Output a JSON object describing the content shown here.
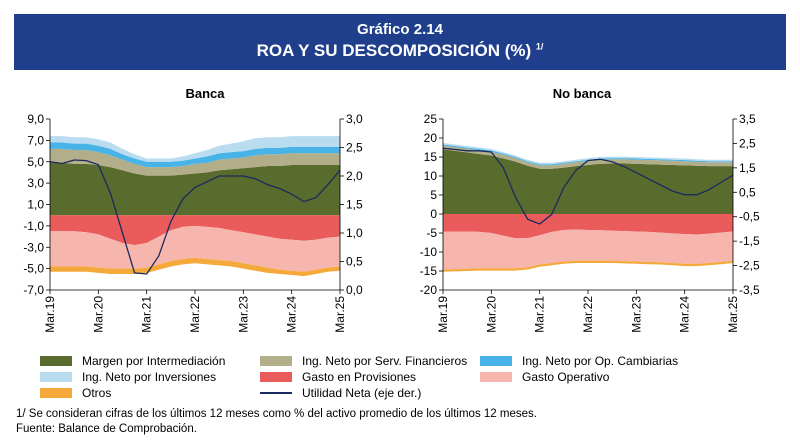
{
  "header": {
    "graph_number": "Gráfico 2.14",
    "title": "ROA Y SU DESCOMPOSICIÓN (%)",
    "title_note": "1/"
  },
  "notes": {
    "note1": "1/ Se consideran cifras de los últimos 12 meses como % del activo promedio de los últimos 12 meses.",
    "source": "Fuente: Balance de Comprobación."
  },
  "legend": [
    {
      "key": "margen",
      "label": "Margen por Intermediación",
      "color": "#5a6b2e"
    },
    {
      "key": "serv",
      "label": "Ing. Neto por Serv. Financieros",
      "color": "#b3ae8a"
    },
    {
      "key": "camb",
      "label": "Ing. Neto por Op. Cambiarias",
      "color": "#47b3e6"
    },
    {
      "key": "inv",
      "label": "Ing. Neto por Inversiones",
      "color": "#b9dcf1"
    },
    {
      "key": "prov",
      "label": "Gasto en Provisiones",
      "color": "#ea5c5c"
    },
    {
      "key": "oper",
      "label": "Gasto Operativo",
      "color": "#f6b6ae"
    },
    {
      "key": "otros",
      "label": "Otros",
      "color": "#f5a93a"
    },
    {
      "key": "util",
      "label": "Utilidad Neta (eje der.)",
      "color": "#1a2a5e"
    }
  ],
  "chart_data": [
    {
      "type": "area",
      "title": "Banca",
      "x": [
        "Mar.19",
        "Jun.19",
        "Sep.19",
        "Dic.19",
        "Mar.20",
        "Jun.20",
        "Sep.20",
        "Dic.20",
        "Mar.21",
        "Jun.21",
        "Sep.21",
        "Dic.21",
        "Mar.22",
        "Jun.22",
        "Sep.22",
        "Dic.22",
        "Mar.23",
        "Jun.23",
        "Sep.23",
        "Dic.23",
        "Mar.24",
        "Jun.24",
        "Sep.24",
        "Dic.24",
        "Mar.25"
      ],
      "xticks": [
        "Mar.19",
        "Mar.20",
        "Mar.21",
        "Mar.22",
        "Mar.23",
        "Mar.24",
        "Mar.25"
      ],
      "ylim": [
        -7,
        9
      ],
      "yticks": [
        "-7,0",
        "-5,0",
        "-3,0",
        "-1,0",
        "1,0",
        "3,0",
        "5,0",
        "7,0",
        "9,0"
      ],
      "y2lim": [
        0,
        3
      ],
      "y2ticks": [
        "0,0",
        "0,5",
        "1,0",
        "1,5",
        "2,0",
        "2,5",
        "3,0"
      ],
      "series": [
        {
          "key": "margen",
          "stack": "pos",
          "values": [
            4.9,
            4.9,
            4.8,
            4.8,
            4.7,
            4.5,
            4.2,
            3.9,
            3.7,
            3.7,
            3.7,
            3.8,
            3.9,
            4.0,
            4.2,
            4.3,
            4.4,
            4.5,
            4.6,
            4.6,
            4.7,
            4.7,
            4.7,
            4.7,
            4.7
          ]
        },
        {
          "key": "serv",
          "stack": "pos",
          "values": [
            1.3,
            1.3,
            1.3,
            1.3,
            1.2,
            1.1,
            1.0,
            0.9,
            0.8,
            0.8,
            0.8,
            0.8,
            0.9,
            0.9,
            1.0,
            1.0,
            1.0,
            1.1,
            1.1,
            1.1,
            1.1,
            1.1,
            1.1,
            1.1,
            1.1
          ]
        },
        {
          "key": "camb",
          "stack": "pos",
          "values": [
            0.6,
            0.6,
            0.6,
            0.6,
            0.6,
            0.6,
            0.5,
            0.5,
            0.5,
            0.5,
            0.5,
            0.5,
            0.5,
            0.6,
            0.6,
            0.6,
            0.6,
            0.6,
            0.6,
            0.6,
            0.6,
            0.6,
            0.6,
            0.6,
            0.6
          ]
        },
        {
          "key": "inv",
          "stack": "pos",
          "values": [
            0.6,
            0.6,
            0.6,
            0.6,
            0.6,
            0.6,
            0.5,
            0.4,
            0.3,
            0.3,
            0.3,
            0.4,
            0.5,
            0.6,
            0.7,
            0.8,
            0.9,
            1.0,
            1.0,
            1.0,
            1.0,
            1.0,
            1.0,
            1.0,
            1.0
          ]
        },
        {
          "key": "prov",
          "stack": "neg",
          "values": [
            -1.5,
            -1.5,
            -1.5,
            -1.6,
            -1.8,
            -2.2,
            -2.6,
            -2.8,
            -2.6,
            -2.0,
            -1.4,
            -1.1,
            -1.0,
            -1.1,
            -1.2,
            -1.4,
            -1.6,
            -1.8,
            -2.0,
            -2.2,
            -2.3,
            -2.4,
            -2.3,
            -2.1,
            -2.0
          ]
        },
        {
          "key": "oper",
          "stack": "neg",
          "values": [
            -3.3,
            -3.3,
            -3.3,
            -3.2,
            -3.1,
            -2.8,
            -2.4,
            -2.2,
            -2.3,
            -2.6,
            -2.9,
            -3.0,
            -3.0,
            -3.0,
            -3.0,
            -2.9,
            -2.9,
            -2.9,
            -2.9,
            -2.9,
            -2.9,
            -2.9,
            -2.8,
            -2.8,
            -2.8
          ]
        },
        {
          "key": "otros",
          "stack": "neg",
          "values": [
            -0.5,
            -0.5,
            -0.5,
            -0.5,
            -0.5,
            -0.5,
            -0.5,
            -0.5,
            -0.5,
            -0.5,
            -0.5,
            -0.5,
            -0.5,
            -0.5,
            -0.5,
            -0.5,
            -0.5,
            -0.5,
            -0.5,
            -0.4,
            -0.4,
            -0.4,
            -0.4,
            -0.4,
            -0.4
          ]
        },
        {
          "key": "util",
          "axis": "right",
          "values": [
            2.25,
            2.22,
            2.28,
            2.27,
            2.2,
            1.7,
            1.0,
            0.3,
            0.28,
            0.6,
            1.2,
            1.6,
            1.8,
            1.9,
            2.0,
            2.0,
            2.0,
            1.95,
            1.85,
            1.78,
            1.68,
            1.55,
            1.62,
            1.85,
            2.1
          ]
        }
      ]
    },
    {
      "type": "area",
      "title": "No banca",
      "x": [
        "Mar.19",
        "Jun.19",
        "Sep.19",
        "Dic.19",
        "Mar.20",
        "Jun.20",
        "Sep.20",
        "Dic.20",
        "Mar.21",
        "Jun.21",
        "Sep.21",
        "Dic.21",
        "Mar.22",
        "Jun.22",
        "Sep.22",
        "Dic.22",
        "Mar.23",
        "Jun.23",
        "Sep.23",
        "Dic.23",
        "Mar.24",
        "Jun.24",
        "Sep.24",
        "Dic.24",
        "Mar.25"
      ],
      "xticks": [
        "Mar.19",
        "Mar.20",
        "Mar.21",
        "Mar.22",
        "Mar.23",
        "Mar.24",
        "Mar.25"
      ],
      "ylim": [
        -20,
        25
      ],
      "yticks": [
        "-20",
        "-15",
        "-10",
        "-5",
        "0",
        "5",
        "10",
        "15",
        "20",
        "25"
      ],
      "y2lim": [
        -3.5,
        3.5
      ],
      "y2ticks": [
        "-3,5",
        "-2,5",
        "-1,5",
        "-0,5",
        "0,5",
        "1,5",
        "2,5",
        "3,5"
      ],
      "series": [
        {
          "key": "margen",
          "stack": "pos",
          "values": [
            17.0,
            16.6,
            16.2,
            15.8,
            15.4,
            14.6,
            13.8,
            12.7,
            11.9,
            11.9,
            12.2,
            12.6,
            12.9,
            13.2,
            13.3,
            13.3,
            13.2,
            13.1,
            13.0,
            12.9,
            12.8,
            12.7,
            12.6,
            12.6,
            12.6
          ]
        },
        {
          "key": "serv",
          "stack": "pos",
          "values": [
            1.0,
            1.0,
            1.0,
            1.0,
            1.0,
            1.0,
            0.9,
            0.9,
            0.9,
            0.9,
            1.0,
            1.0,
            1.1,
            1.1,
            1.1,
            1.1,
            1.1,
            1.1,
            1.1,
            1.1,
            1.1,
            1.0,
            1.0,
            1.0,
            1.0
          ]
        },
        {
          "key": "camb",
          "stack": "pos",
          "values": [
            0.3,
            0.3,
            0.3,
            0.3,
            0.3,
            0.3,
            0.3,
            0.3,
            0.3,
            0.3,
            0.3,
            0.3,
            0.3,
            0.3,
            0.3,
            0.3,
            0.3,
            0.3,
            0.3,
            0.3,
            0.3,
            0.3,
            0.3,
            0.3,
            0.3
          ]
        },
        {
          "key": "inv",
          "stack": "pos",
          "values": [
            0.4,
            0.4,
            0.4,
            0.4,
            0.4,
            0.4,
            0.4,
            0.4,
            0.4,
            0.4,
            0.4,
            0.4,
            0.4,
            0.4,
            0.4,
            0.4,
            0.4,
            0.4,
            0.4,
            0.4,
            0.4,
            0.4,
            0.4,
            0.4,
            0.4
          ]
        },
        {
          "key": "prov",
          "stack": "neg",
          "values": [
            -4.6,
            -4.6,
            -4.6,
            -4.7,
            -5.0,
            -5.7,
            -6.4,
            -6.4,
            -5.6,
            -4.7,
            -4.2,
            -4.1,
            -4.2,
            -4.3,
            -4.4,
            -4.5,
            -4.6,
            -4.7,
            -4.9,
            -5.1,
            -5.3,
            -5.4,
            -5.2,
            -4.9,
            -4.6
          ]
        },
        {
          "key": "oper",
          "stack": "neg",
          "values": [
            -10.0,
            -9.9,
            -9.8,
            -9.6,
            -9.3,
            -8.6,
            -7.9,
            -7.6,
            -7.7,
            -8.2,
            -8.3,
            -8.2,
            -8.1,
            -8.0,
            -7.9,
            -7.9,
            -7.9,
            -7.9,
            -7.8,
            -7.8,
            -7.8,
            -7.7,
            -7.7,
            -7.7,
            -7.7
          ]
        },
        {
          "key": "otros",
          "stack": "neg",
          "values": [
            -0.6,
            -0.6,
            -0.6,
            -0.6,
            -0.6,
            -0.6,
            -0.6,
            -0.6,
            -0.6,
            -0.6,
            -0.6,
            -0.6,
            -0.6,
            -0.6,
            -0.6,
            -0.6,
            -0.6,
            -0.6,
            -0.6,
            -0.6,
            -0.6,
            -0.6,
            -0.6,
            -0.6,
            -0.6
          ]
        },
        {
          "key": "util",
          "axis": "right",
          "values": [
            2.3,
            2.25,
            2.2,
            2.2,
            2.15,
            1.5,
            0.3,
            -0.6,
            -0.8,
            -0.4,
            0.7,
            1.4,
            1.8,
            1.85,
            1.75,
            1.55,
            1.3,
            1.05,
            0.8,
            0.55,
            0.4,
            0.4,
            0.6,
            0.9,
            1.2
          ]
        }
      ]
    }
  ]
}
